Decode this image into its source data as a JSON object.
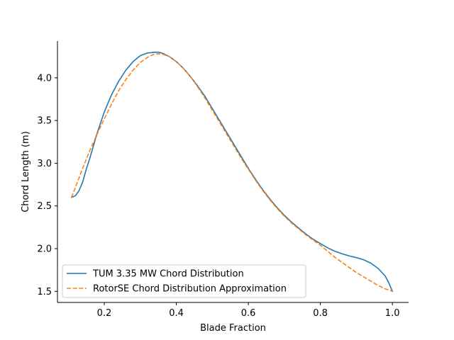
{
  "chart_data": {
    "type": "line",
    "xlabel": "Blade Fraction",
    "ylabel": "Chord Length (m)",
    "xlim": [
      0.07,
      1.045
    ],
    "ylim": [
      1.37,
      4.43
    ],
    "xticks": [
      0.2,
      0.4,
      0.6,
      0.8,
      1.0
    ],
    "xtick_labels": [
      "0.2",
      "0.4",
      "0.6",
      "0.8",
      "1.0"
    ],
    "yticks": [
      1.5,
      2.0,
      2.5,
      3.0,
      3.5,
      4.0
    ],
    "ytick_labels": [
      "1.5",
      "2.0",
      "2.5",
      "3.0",
      "3.5",
      "4.0"
    ],
    "grid": false,
    "legend_position": "lower-left",
    "series": [
      {
        "name": "TUM 3.35 MW Chord Distribution",
        "color": "#1f77b4",
        "style": "solid",
        "x": [
          0.109,
          0.12,
          0.13,
          0.14,
          0.15,
          0.16,
          0.18,
          0.2,
          0.22,
          0.24,
          0.26,
          0.28,
          0.3,
          0.32,
          0.34,
          0.35,
          0.36,
          0.38,
          0.4,
          0.42,
          0.44,
          0.46,
          0.48,
          0.5,
          0.52,
          0.54,
          0.56,
          0.58,
          0.6,
          0.62,
          0.64,
          0.66,
          0.68,
          0.7,
          0.72,
          0.74,
          0.76,
          0.78,
          0.8,
          0.82,
          0.84,
          0.86,
          0.88,
          0.9,
          0.92,
          0.94,
          0.96,
          0.98,
          0.99,
          1.0
        ],
        "y": [
          2.6,
          2.62,
          2.68,
          2.78,
          2.93,
          3.06,
          3.35,
          3.6,
          3.8,
          3.96,
          4.09,
          4.19,
          4.26,
          4.29,
          4.3,
          4.3,
          4.29,
          4.25,
          4.19,
          4.11,
          4.01,
          3.9,
          3.78,
          3.64,
          3.5,
          3.36,
          3.22,
          3.08,
          2.94,
          2.81,
          2.69,
          2.58,
          2.48,
          2.39,
          2.31,
          2.24,
          2.17,
          2.11,
          2.06,
          2.01,
          1.97,
          1.94,
          1.915,
          1.895,
          1.87,
          1.83,
          1.77,
          1.68,
          1.6,
          1.5
        ]
      },
      {
        "name": "RotorSE Chord Distribution Approximation",
        "color": "#ff7f0e",
        "style": "dashed",
        "x": [
          0.109,
          0.12,
          0.14,
          0.16,
          0.18,
          0.2,
          0.22,
          0.24,
          0.26,
          0.28,
          0.3,
          0.32,
          0.34,
          0.36,
          0.38,
          0.4,
          0.42,
          0.44,
          0.46,
          0.48,
          0.5,
          0.52,
          0.54,
          0.56,
          0.58,
          0.6,
          0.62,
          0.64,
          0.66,
          0.68,
          0.7,
          0.72,
          0.74,
          0.76,
          0.78,
          0.8,
          0.82,
          0.84,
          0.86,
          0.88,
          0.9,
          0.92,
          0.94,
          0.96,
          0.98,
          1.0
        ],
        "y": [
          2.6,
          2.72,
          2.94,
          3.15,
          3.34,
          3.52,
          3.69,
          3.85,
          3.98,
          4.09,
          4.18,
          4.24,
          4.28,
          4.28,
          4.25,
          4.19,
          4.11,
          4.01,
          3.89,
          3.76,
          3.62,
          3.48,
          3.34,
          3.2,
          3.06,
          2.93,
          2.8,
          2.68,
          2.57,
          2.47,
          2.38,
          2.3,
          2.23,
          2.16,
          2.1,
          2.04,
          1.97,
          1.9,
          1.84,
          1.78,
          1.72,
          1.67,
          1.62,
          1.57,
          1.53,
          1.5
        ]
      }
    ]
  }
}
